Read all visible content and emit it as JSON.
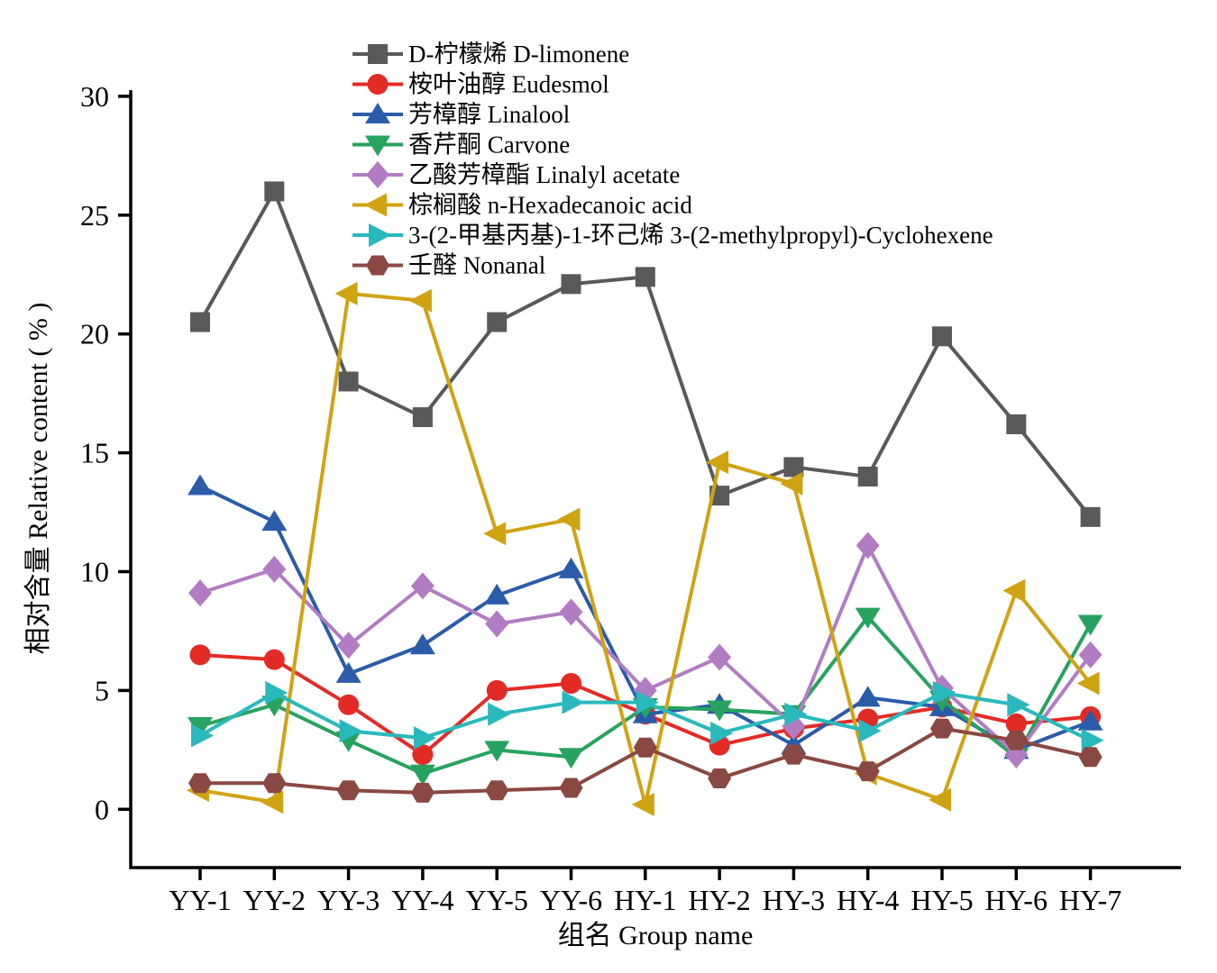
{
  "chart_data": {
    "type": "line",
    "title": "",
    "xlabel": "组名 Group name",
    "ylabel": "相对含量 Relative content ( % )",
    "ylim": [
      0,
      30
    ],
    "yticks": [
      0,
      5,
      10,
      15,
      20,
      25,
      30
    ],
    "grid": false,
    "legend_position": "top-inside-left",
    "categories": [
      "YY-1",
      "YY-2",
      "YY-3",
      "YY-4",
      "YY-5",
      "YY-6",
      "HY-1",
      "HY-2",
      "HY-3",
      "HY-4",
      "HY-5",
      "HY-6",
      "HY-7"
    ],
    "series": [
      {
        "name": "D-柠檬烯 D-limonene",
        "marker": "square",
        "color": "#595959",
        "values": [
          20.5,
          26.0,
          18.0,
          16.5,
          20.5,
          22.1,
          22.4,
          13.2,
          14.4,
          14.0,
          19.9,
          16.2,
          12.3
        ]
      },
      {
        "name": "桉叶油醇 Eudesmol",
        "marker": "circle",
        "color": "#e32b26",
        "values": [
          6.5,
          6.3,
          4.4,
          2.3,
          5.0,
          5.3,
          4.0,
          2.7,
          3.4,
          3.8,
          4.3,
          3.6,
          3.9
        ]
      },
      {
        "name": "芳樟醇 Linalool",
        "marker": "triangle-up",
        "color": "#2a5caa",
        "values": [
          13.6,
          12.1,
          5.7,
          6.9,
          9.0,
          10.1,
          4.0,
          4.4,
          2.7,
          4.7,
          4.3,
          2.5,
          3.7
        ]
      },
      {
        "name": "香芹酮 Carvone",
        "marker": "triangle-down",
        "color": "#27a35f",
        "values": [
          3.5,
          4.4,
          2.9,
          1.5,
          2.5,
          2.2,
          4.3,
          4.2,
          4.0,
          8.1,
          4.6,
          2.2,
          7.8
        ]
      },
      {
        "name": "乙酸芳樟酯 Linalyl acetate",
        "marker": "diamond",
        "color": "#b27cc4",
        "values": [
          9.1,
          10.1,
          6.9,
          9.4,
          7.8,
          8.3,
          5.0,
          6.4,
          3.5,
          11.1,
          5.1,
          2.3,
          6.5
        ]
      },
      {
        "name": "棕榈酸 n-Hexadecanoic acid",
        "marker": "triangle-left",
        "color": "#d0a312",
        "values": [
          0.8,
          0.3,
          21.7,
          21.4,
          11.6,
          12.2,
          0.2,
          14.6,
          13.7,
          1.5,
          0.4,
          9.2,
          5.3
        ]
      },
      {
        "name": "3-(2-甲基丙基)-1-环己烯 3-(2-methylpropyl)-Cyclohexene",
        "marker": "triangle-right",
        "color": "#29b9bd",
        "values": [
          3.1,
          4.9,
          3.3,
          3.0,
          4.0,
          4.5,
          4.5,
          3.2,
          4.0,
          3.3,
          4.9,
          4.4,
          2.9
        ]
      },
      {
        "name": "壬醛 Nonanal",
        "marker": "hexagon",
        "color": "#8a4843",
        "values": [
          1.1,
          1.1,
          0.8,
          0.7,
          0.8,
          0.9,
          2.6,
          1.3,
          2.3,
          1.6,
          3.4,
          2.9,
          2.2
        ]
      }
    ]
  },
  "layout_note": ""
}
